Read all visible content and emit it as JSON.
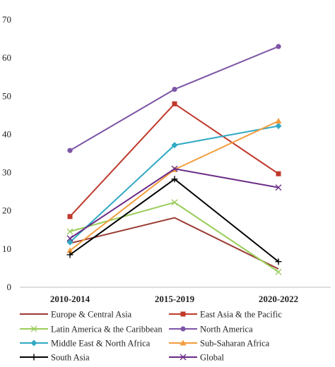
{
  "chart_data": {
    "type": "line",
    "categories": [
      "2010-2014",
      "2015-2019",
      "2020-2022"
    ],
    "ylim": [
      0,
      70
    ],
    "yticks": [
      0,
      10,
      20,
      30,
      40,
      50,
      60,
      70
    ],
    "grid": false,
    "legend_position": "bottom",
    "series": [
      {
        "name": "Europe & Central Asia",
        "values": [
          11.5,
          18.2,
          4.8
        ],
        "color": "#9b3a33",
        "marker": "none"
      },
      {
        "name": "East Asia & the Pacific",
        "values": [
          18.5,
          48.0,
          29.7
        ],
        "color": "#c0392b",
        "marker": "square"
      },
      {
        "name": "Latin America & the Caribbean",
        "values": [
          14.6,
          22.2,
          4.0
        ],
        "color": "#9acd5a",
        "marker": "x"
      },
      {
        "name": "North America",
        "values": [
          35.8,
          51.8,
          63.0
        ],
        "color": "#7d55a6",
        "marker": "circle"
      },
      {
        "name": "Middle East & North Africa",
        "values": [
          11.8,
          37.2,
          42.2
        ],
        "color": "#31a9c4",
        "marker": "diamond"
      },
      {
        "name": "Sub-Saharan Africa",
        "values": [
          9.6,
          30.8,
          43.5
        ],
        "color": "#f39c3d",
        "marker": "triangle"
      },
      {
        "name": "South Asia",
        "values": [
          8.5,
          28.3,
          6.7
        ],
        "color": "#000000",
        "marker": "plus"
      },
      {
        "name": "Global",
        "values": [
          12.8,
          31.0,
          26.1
        ],
        "color": "#6a2a86",
        "marker": "x"
      }
    ]
  }
}
